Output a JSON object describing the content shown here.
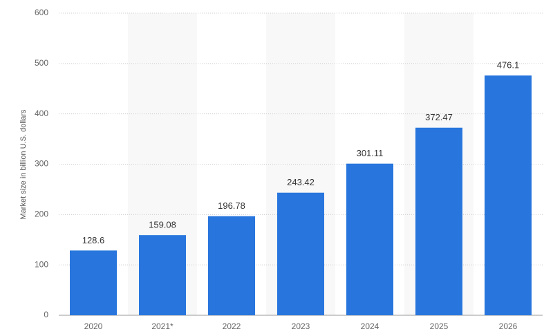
{
  "chart_data": {
    "type": "bar",
    "y_label": "Market size in billion U.S. dollars",
    "categories": [
      "2020",
      "2021*",
      "2022",
      "2023",
      "2024",
      "2025",
      "2026"
    ],
    "values": [
      128.6,
      159.08,
      196.78,
      243.42,
      301.11,
      372.47,
      476.1
    ],
    "color": "#2876dd",
    "ylim": [
      0,
      600
    ],
    "yticks": [
      0,
      100,
      200,
      300,
      400,
      500,
      600
    ],
    "grid": true
  }
}
